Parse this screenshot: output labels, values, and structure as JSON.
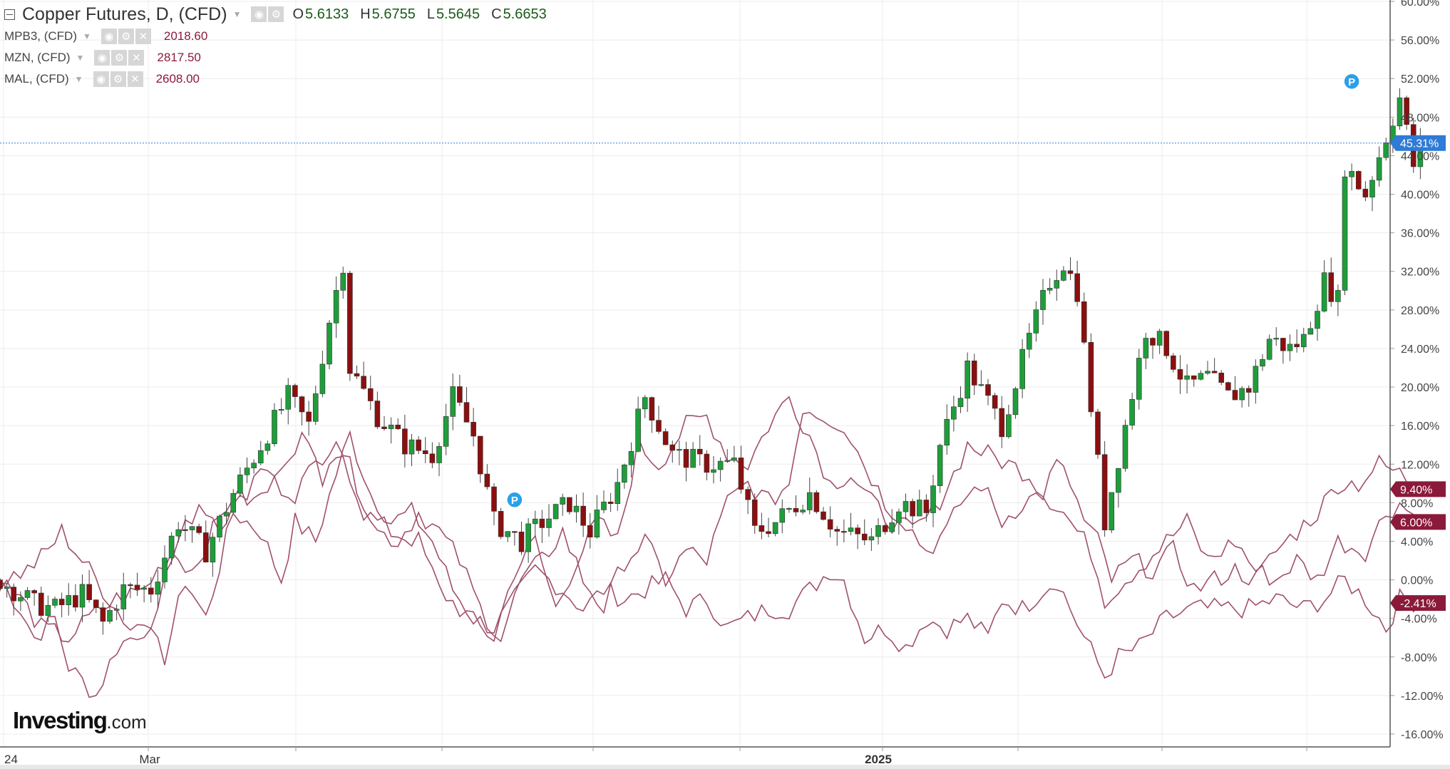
{
  "legend": {
    "main": {
      "symbol": "Copper Futures, D, (CFD)",
      "open_label": "O",
      "open": "5.6133",
      "high_label": "H",
      "high": "5.6755",
      "low_label": "L",
      "low": "5.5645",
      "close_label": "C",
      "close": "5.6653"
    },
    "comparisons": [
      {
        "name": "MPB3, (CFD)",
        "price": "2018.60"
      },
      {
        "name": "MZN, (CFD)",
        "price": "2817.50"
      },
      {
        "name": "MAL, (CFD)",
        "price": "2608.00"
      }
    ],
    "icons": [
      "eye-icon",
      "gear-icon",
      "close-icon"
    ]
  },
  "watermark": {
    "brand": "Investing",
    "tld": ".com"
  },
  "chart_data": {
    "type": "line",
    "y_axis": {
      "position": "right",
      "unit": "%",
      "ylim": [
        -16,
        60
      ],
      "ticks": [
        "60.00%",
        "56.00%",
        "52.00%",
        "48.00%",
        "44.00%",
        "40.00%",
        "36.00%",
        "32.00%",
        "28.00%",
        "24.00%",
        "20.00%",
        "16.00%",
        "12.00%",
        "8.00%",
        "4.00%",
        "0.00%",
        "-4.00%",
        "-8.00%",
        "-12.00%",
        "-16.00%"
      ]
    },
    "x_axis": {
      "ticks": [
        "24",
        "Mar",
        "2025"
      ],
      "xlim": [
        0,
        200
      ]
    },
    "markers": [
      {
        "label": "P",
        "x": 75,
        "y": 8.3
      },
      {
        "label": "P",
        "x": 197,
        "y": 51.7
      }
    ],
    "price_line": 45.31,
    "badges": [
      {
        "text": "45.31%",
        "value": 45.31,
        "color": "#2f7bd6"
      },
      {
        "text": "9.40%",
        "value": 9.4,
        "color": "#8b1a3a"
      },
      {
        "text": "6.00%",
        "value": 6.0,
        "color": "#8b1a3a"
      },
      {
        "text": "-2.41%",
        "value": -2.41,
        "color": "#8b1a3a"
      }
    ],
    "colors": {
      "up": "#1e9e3a",
      "down": "#8b0f0f",
      "comparison": "#a0506e",
      "grid": "#ececec"
    },
    "candles_knots": [
      [
        0,
        0
      ],
      [
        5,
        -2.5
      ],
      [
        8,
        -3
      ],
      [
        12,
        -1.5
      ],
      [
        15,
        -4.5
      ],
      [
        18,
        -1
      ],
      [
        22,
        -1
      ],
      [
        26,
        6
      ],
      [
        30,
        3
      ],
      [
        34,
        9
      ],
      [
        38,
        14
      ],
      [
        42,
        19
      ],
      [
        45,
        16
      ],
      [
        48,
        27
      ],
      [
        50,
        33
      ],
      [
        51,
        22
      ],
      [
        55,
        17
      ],
      [
        59,
        14
      ],
      [
        63,
        13
      ],
      [
        66,
        19
      ],
      [
        69,
        15
      ],
      [
        72,
        6
      ],
      [
        76,
        4
      ],
      [
        79,
        6
      ],
      [
        83,
        8
      ],
      [
        86,
        5
      ],
      [
        90,
        10
      ],
      [
        94,
        19
      ],
      [
        98,
        13
      ],
      [
        103,
        12
      ],
      [
        107,
        12
      ],
      [
        110,
        5
      ],
      [
        113,
        6
      ],
      [
        118,
        9
      ],
      [
        122,
        5
      ],
      [
        127,
        4
      ],
      [
        131,
        8
      ],
      [
        135,
        7
      ],
      [
        137,
        14
      ],
      [
        141,
        22
      ],
      [
        146,
        16
      ],
      [
        150,
        25
      ],
      [
        153,
        31
      ],
      [
        155,
        33
      ],
      [
        157,
        30
      ],
      [
        159,
        18
      ],
      [
        160,
        12
      ],
      [
        161,
        6
      ],
      [
        164,
        16
      ],
      [
        167,
        26
      ],
      [
        170,
        24
      ],
      [
        173,
        20
      ],
      [
        176,
        21
      ],
      [
        179,
        19
      ],
      [
        182,
        20
      ],
      [
        185,
        25
      ],
      [
        188,
        24
      ],
      [
        190,
        25
      ],
      [
        193,
        31
      ],
      [
        195,
        29
      ],
      [
        196,
        43
      ],
      [
        199,
        40
      ],
      [
        201,
        44
      ],
      [
        204,
        50
      ],
      [
        206,
        43
      ],
      [
        207,
        45.3
      ]
    ],
    "series": [
      {
        "values_knots": [
          [
            0,
            0
          ],
          [
            3,
            -3
          ],
          [
            5,
            -6
          ],
          [
            8,
            -4
          ],
          [
            10,
            -9
          ],
          [
            14,
            -12
          ],
          [
            17,
            -7
          ],
          [
            21,
            -5
          ],
          [
            24,
            -8
          ],
          [
            27,
            0
          ],
          [
            30,
            -4
          ],
          [
            34,
            7
          ],
          [
            38,
            5
          ],
          [
            41,
            0
          ],
          [
            43,
            6
          ],
          [
            46,
            4
          ],
          [
            49,
            11
          ],
          [
            51,
            15
          ],
          [
            54,
            9
          ],
          [
            57,
            6
          ],
          [
            60,
            7
          ],
          [
            63,
            4
          ],
          [
            66,
            -1
          ],
          [
            69,
            -4
          ],
          [
            72,
            -5
          ],
          [
            75,
            -2
          ],
          [
            78,
            1
          ],
          [
            82,
            -1
          ],
          [
            85,
            -3
          ],
          [
            88,
            -1
          ],
          [
            91,
            -2
          ],
          [
            94,
            -1
          ],
          [
            97,
            0
          ],
          [
            100,
            -3
          ],
          [
            103,
            -2
          ],
          [
            106,
            -5
          ],
          [
            109,
            -4
          ],
          [
            112,
            -3
          ],
          [
            115,
            -3
          ],
          [
            118,
            -1
          ],
          [
            121,
            1
          ],
          [
            123,
            0
          ],
          [
            126,
            -6
          ],
          [
            129,
            -5
          ],
          [
            132,
            -7
          ],
          [
            135,
            -4
          ],
          [
            138,
            -5
          ],
          [
            141,
            -4
          ],
          [
            144,
            -6
          ],
          [
            146,
            -2
          ],
          [
            149,
            -3
          ],
          [
            152,
            -1
          ],
          [
            154,
            0
          ],
          [
            156,
            -3
          ],
          [
            158,
            -6
          ],
          [
            161,
            -10
          ],
          [
            163,
            -8
          ],
          [
            166,
            -7
          ],
          [
            170,
            -4
          ],
          [
            174,
            -3
          ],
          [
            178,
            -3
          ],
          [
            182,
            -3
          ],
          [
            186,
            -2
          ],
          [
            190,
            -3
          ],
          [
            193,
            -2
          ],
          [
            196,
            0
          ],
          [
            199,
            -2
          ],
          [
            202,
            -5
          ],
          [
            204,
            -2
          ],
          [
            207,
            -2.41
          ]
        ]
      },
      {
        "values_knots": [
          [
            0,
            0
          ],
          [
            4,
            1
          ],
          [
            7,
            3
          ],
          [
            9,
            5
          ],
          [
            12,
            2
          ],
          [
            16,
            -2
          ],
          [
            19,
            -5
          ],
          [
            22,
            -4
          ],
          [
            26,
            4
          ],
          [
            29,
            8
          ],
          [
            32,
            6
          ],
          [
            35,
            8
          ],
          [
            38,
            12
          ],
          [
            41,
            11
          ],
          [
            44,
            15
          ],
          [
            47,
            10
          ],
          [
            50,
            13
          ],
          [
            53,
            7
          ],
          [
            57,
            5
          ],
          [
            61,
            4
          ],
          [
            64,
            -1
          ],
          [
            67,
            -3
          ],
          [
            70,
            -5
          ],
          [
            72,
            -6
          ],
          [
            75,
            1
          ],
          [
            78,
            4
          ],
          [
            81,
            -3
          ],
          [
            84,
            2
          ],
          [
            87,
            6
          ],
          [
            90,
            4
          ],
          [
            93,
            14
          ],
          [
            96,
            12
          ],
          [
            100,
            16
          ],
          [
            103,
            17
          ],
          [
            106,
            13
          ],
          [
            109,
            12
          ],
          [
            112,
            16
          ],
          [
            115,
            19
          ],
          [
            118,
            15
          ],
          [
            121,
            10
          ],
          [
            124,
            11
          ],
          [
            127,
            8
          ],
          [
            130,
            6
          ],
          [
            133,
            5
          ],
          [
            136,
            7
          ],
          [
            139,
            11
          ],
          [
            141,
            14
          ],
          [
            144,
            13
          ],
          [
            147,
            12
          ],
          [
            150,
            11
          ],
          [
            152,
            9
          ],
          [
            155,
            7
          ],
          [
            157,
            5
          ],
          [
            159,
            3
          ],
          [
            161,
            -2
          ],
          [
            164,
            0
          ],
          [
            167,
            2
          ],
          [
            170,
            4
          ],
          [
            173,
            6
          ],
          [
            176,
            2
          ],
          [
            180,
            4
          ],
          [
            183,
            1
          ],
          [
            186,
            0
          ],
          [
            189,
            2
          ],
          [
            192,
            0
          ],
          [
            195,
            4
          ],
          [
            199,
            3
          ],
          [
            202,
            7
          ],
          [
            204,
            8
          ],
          [
            207,
            6
          ]
        ]
      },
      {
        "values_knots": [
          [
            0,
            0
          ],
          [
            3,
            -2
          ],
          [
            6,
            -5
          ],
          [
            10,
            -6
          ],
          [
            13,
            -4
          ],
          [
            17,
            -2
          ],
          [
            21,
            -1
          ],
          [
            25,
            3
          ],
          [
            28,
            1
          ],
          [
            31,
            5
          ],
          [
            34,
            9
          ],
          [
            37,
            8
          ],
          [
            40,
            10
          ],
          [
            43,
            9
          ],
          [
            46,
            12
          ],
          [
            49,
            15
          ],
          [
            52,
            10
          ],
          [
            55,
            5
          ],
          [
            58,
            4
          ],
          [
            61,
            7
          ],
          [
            64,
            5
          ],
          [
            67,
            2
          ],
          [
            70,
            -3
          ],
          [
            73,
            -6
          ],
          [
            76,
            0
          ],
          [
            79,
            2
          ],
          [
            82,
            5
          ],
          [
            85,
            0
          ],
          [
            88,
            -3
          ],
          [
            91,
            2
          ],
          [
            94,
            4
          ],
          [
            97,
            0
          ],
          [
            100,
            3
          ],
          [
            103,
            2
          ],
          [
            106,
            8
          ],
          [
            109,
            10
          ],
          [
            112,
            8
          ],
          [
            115,
            10
          ],
          [
            117,
            18
          ],
          [
            120,
            17
          ],
          [
            123,
            16
          ],
          [
            126,
            12
          ],
          [
            129,
            8
          ],
          [
            132,
            6
          ],
          [
            135,
            3
          ],
          [
            138,
            5
          ],
          [
            140,
            8
          ],
          [
            143,
            10
          ],
          [
            146,
            6
          ],
          [
            149,
            8
          ],
          [
            152,
            9
          ],
          [
            154,
            12
          ],
          [
            156,
            10
          ],
          [
            158,
            6
          ],
          [
            160,
            4
          ],
          [
            162,
            0
          ],
          [
            165,
            2
          ],
          [
            168,
            1
          ],
          [
            171,
            3
          ],
          [
            174,
            -1
          ],
          [
            177,
            0
          ],
          [
            180,
            1
          ],
          [
            183,
            0
          ],
          [
            186,
            3
          ],
          [
            189,
            5
          ],
          [
            192,
            7
          ],
          [
            195,
            10
          ],
          [
            198,
            10
          ],
          [
            201,
            12
          ],
          [
            204,
            11
          ],
          [
            207,
            9.4
          ]
        ]
      }
    ]
  }
}
